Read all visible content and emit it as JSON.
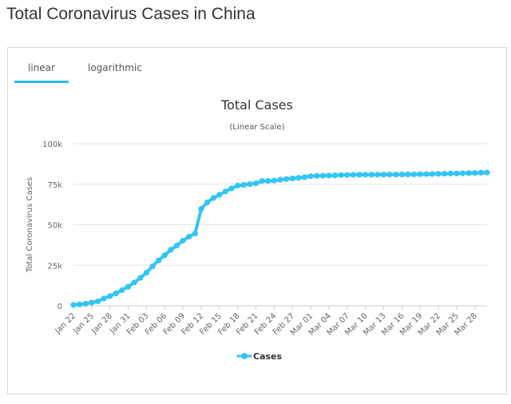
{
  "page": {
    "title": "Total Coronavirus Cases in China"
  },
  "tabs": [
    {
      "label": "linear",
      "active": true
    },
    {
      "label": "logarithmic",
      "active": false
    }
  ],
  "colors": {
    "series": "#33c5f3",
    "tab_accent": "#2bb8ec",
    "grid": "#e6e6e6"
  },
  "chart_data": {
    "type": "line",
    "title": "Total Cases",
    "subtitle": "(Linear Scale)",
    "ylabel": "Total Coronavirus Cases",
    "xlabel": "",
    "ylim": [
      0,
      100000
    ],
    "yticks": [
      0,
      25000,
      50000,
      75000,
      100000
    ],
    "ytick_labels": [
      "0",
      "25k",
      "50k",
      "75k",
      "100k"
    ],
    "xtick_labels": [
      "Jan 22",
      "Jan 25",
      "Jan 28",
      "Jan 31",
      "Feb 03",
      "Feb 06",
      "Feb 09",
      "Feb 12",
      "Feb 15",
      "Feb 18",
      "Feb 21",
      "Feb 24",
      "Feb 27",
      "Mar 01",
      "Mar 04",
      "Mar 07",
      "Mar 10",
      "Mar 13",
      "Mar 16",
      "Mar 19",
      "Mar 22",
      "Mar 25",
      "Mar 28"
    ],
    "grid": true,
    "legend": "bottom-center",
    "categories": [
      "Jan 22",
      "Jan 23",
      "Jan 24",
      "Jan 25",
      "Jan 26",
      "Jan 27",
      "Jan 28",
      "Jan 29",
      "Jan 30",
      "Jan 31",
      "Feb 01",
      "Feb 02",
      "Feb 03",
      "Feb 04",
      "Feb 05",
      "Feb 06",
      "Feb 07",
      "Feb 08",
      "Feb 09",
      "Feb 10",
      "Feb 11",
      "Feb 12",
      "Feb 13",
      "Feb 14",
      "Feb 15",
      "Feb 16",
      "Feb 17",
      "Feb 18",
      "Feb 19",
      "Feb 20",
      "Feb 21",
      "Feb 22",
      "Feb 23",
      "Feb 24",
      "Feb 25",
      "Feb 26",
      "Feb 27",
      "Feb 28",
      "Feb 29",
      "Mar 01",
      "Mar 02",
      "Mar 03",
      "Mar 04",
      "Mar 05",
      "Mar 06",
      "Mar 07",
      "Mar 08",
      "Mar 09",
      "Mar 10",
      "Mar 11",
      "Mar 12",
      "Mar 13",
      "Mar 14",
      "Mar 15",
      "Mar 16",
      "Mar 17",
      "Mar 18",
      "Mar 19",
      "Mar 20",
      "Mar 21",
      "Mar 22",
      "Mar 23",
      "Mar 24",
      "Mar 25",
      "Mar 26",
      "Mar 27",
      "Mar 28",
      "Mar 29",
      "Mar 30"
    ],
    "series": [
      {
        "name": "Cases",
        "values": [
          571,
          830,
          1287,
          1975,
          2744,
          4515,
          5974,
          7711,
          9692,
          11791,
          14380,
          17205,
          20438,
          24324,
          28018,
          31161,
          34546,
          37198,
          40171,
          42638,
          44653,
          59804,
          63851,
          66492,
          68500,
          70548,
          72436,
          74185,
          74576,
          75077,
          75550,
          77001,
          77022,
          77241,
          77754,
          78166,
          78600,
          78928,
          79356,
          79932,
          80136,
          80261,
          80380,
          80497,
          80667,
          80768,
          80814,
          80859,
          80879,
          80908,
          80932,
          80954,
          80973,
          80995,
          81020,
          81058,
          81102,
          81156,
          81250,
          81305,
          81435,
          81498,
          81591,
          81661,
          81782,
          81897,
          81999,
          82122,
          82198
        ]
      }
    ]
  }
}
